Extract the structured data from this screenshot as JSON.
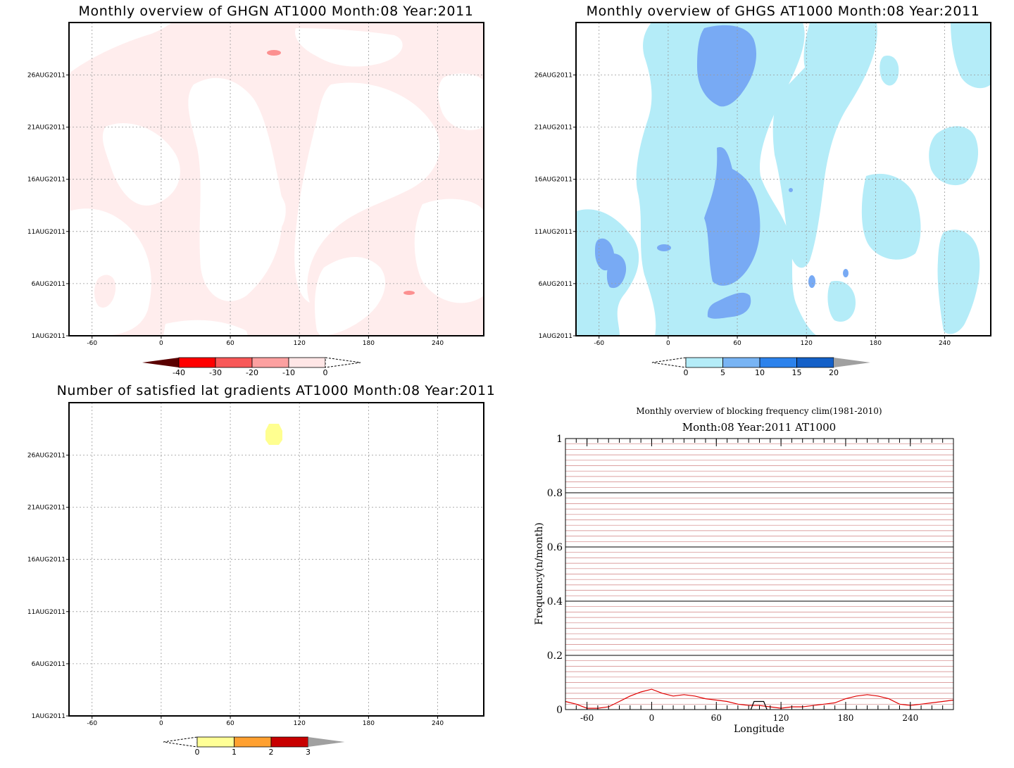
{
  "panels": {
    "ghgn": {
      "title": "Monthly overview of GHGN AT1000 Month:08 Year:2011"
    },
    "ghgs": {
      "title": "Monthly overview of GHGS AT1000 Month:08 Year:2011"
    },
    "lat": {
      "title": "Number of satisfied lat gradients AT1000 Month:08 Year:2011"
    },
    "freq": {
      "title": "Monthly overview of blocking frequency clim(1981-2010)",
      "subtitle": "Month:08 Year:2011 AT1000"
    }
  },
  "chart_data": [
    {
      "type": "heatmap",
      "title": "Monthly overview of GHGN AT1000 Month:08 Year:2011",
      "x_ticks": [
        "-60",
        "0",
        "60",
        "120",
        "180",
        "240"
      ],
      "y_ticks": [
        "1AUG2011",
        "6AUG2011",
        "11AUG2011",
        "16AUG2011",
        "21AUG2011",
        "26AUG2011"
      ],
      "xlim": [
        -80,
        280
      ],
      "colorbar": {
        "ticks": [
          "-40",
          "-30",
          "-20",
          "-10",
          "0"
        ],
        "colors": [
          "#5a0000",
          "#ff0000",
          "#f85858",
          "#fca0a0",
          "#ffe6e6",
          "#ffffff"
        ]
      },
      "regions": [
        {
          "level": "-10 to 0",
          "color": "#ffeded",
          "coverage": "widespread light patches across the domain"
        },
        {
          "level": "-20 to -10",
          "color": "#fc9090",
          "coverage": "small spots near lon 97 (28AUG) and lon 216 (5AUG)"
        }
      ]
    },
    {
      "type": "heatmap",
      "title": "Monthly overview of GHGS AT1000 Month:08 Year:2011",
      "x_ticks": [
        "-60",
        "0",
        "60",
        "120",
        "180",
        "240"
      ],
      "y_ticks": [
        "1AUG2011",
        "6AUG2011",
        "11AUG2011",
        "16AUG2011",
        "21AUG2011",
        "26AUG2011"
      ],
      "xlim": [
        -80,
        280
      ],
      "colorbar": {
        "ticks": [
          "0",
          "5",
          "10",
          "15",
          "20"
        ],
        "colors": [
          "#ffffff",
          "#b4ecf8",
          "#78b4f4",
          "#2c82ec",
          "#1460c8",
          "#a0a0a0"
        ]
      },
      "regions": [
        {
          "level": "0 to 5",
          "color": "#b4ecf8",
          "coverage": "broad band from lon -20 to 150 plus patches east and west"
        },
        {
          "level": "5 to 10",
          "color": "#78aaf4",
          "coverage": "core near lon 30-80 through the month"
        }
      ]
    },
    {
      "type": "heatmap",
      "title": "Number of satisfied lat gradients AT1000 Month:08 Year:2011",
      "x_ticks": [
        "-60",
        "0",
        "60",
        "120",
        "180",
        "240"
      ],
      "y_ticks": [
        "1AUG2011",
        "6AUG2011",
        "11AUG2011",
        "16AUG2011",
        "21AUG2011",
        "26AUG2011"
      ],
      "xlim": [
        -80,
        280
      ],
      "colorbar": {
        "ticks": [
          "0",
          "1",
          "2",
          "3"
        ],
        "colors": [
          "#ffffff",
          "#ffff96",
          "#ffa030",
          "#c80000",
          "#a0a0a0"
        ]
      },
      "regions": [
        {
          "level": "0 to 1",
          "color": "#ffff90",
          "coverage": "single spot near lon 97, 28AUG2011"
        }
      ]
    },
    {
      "type": "line",
      "title": "Monthly overview of blocking frequency clim(1981-2010)",
      "subtitle": "Month:08 Year:2011 AT1000",
      "xlabel": "Longitude",
      "ylabel": "Frequency(n/month)",
      "x_ticks": [
        "-60",
        "0",
        "60",
        "120",
        "180",
        "240"
      ],
      "y_ticks": [
        "0",
        "0.2",
        "0.4",
        "0.6",
        "0.8",
        "1"
      ],
      "xlim": [
        -80,
        280
      ],
      "ylim": [
        0,
        1
      ],
      "series": [
        {
          "color": "#e00000",
          "x": [
            -80,
            -70,
            -60,
            -50,
            -40,
            -30,
            -20,
            -10,
            0,
            10,
            20,
            30,
            40,
            50,
            60,
            70,
            80,
            90,
            100,
            110,
            120,
            130,
            140,
            150,
            160,
            170,
            180,
            190,
            200,
            210,
            220,
            230,
            240,
            250,
            260,
            270,
            280
          ],
          "y": [
            0.03,
            0.02,
            0.005,
            0.005,
            0.01,
            0.03,
            0.05,
            0.065,
            0.075,
            0.06,
            0.05,
            0.055,
            0.05,
            0.04,
            0.035,
            0.03,
            0.02,
            0.015,
            0.015,
            0.01,
            0.005,
            0.01,
            0.01,
            0.015,
            0.02,
            0.025,
            0.04,
            0.05,
            0.055,
            0.05,
            0.04,
            0.02,
            0.015,
            0.02,
            0.025,
            0.03,
            0.035
          ]
        },
        {
          "color": "#000000",
          "x": [
            92,
            95,
            100,
            104,
            107
          ],
          "y": [
            0.0,
            0.03,
            0.03,
            0.03,
            0.0
          ]
        }
      ]
    }
  ]
}
